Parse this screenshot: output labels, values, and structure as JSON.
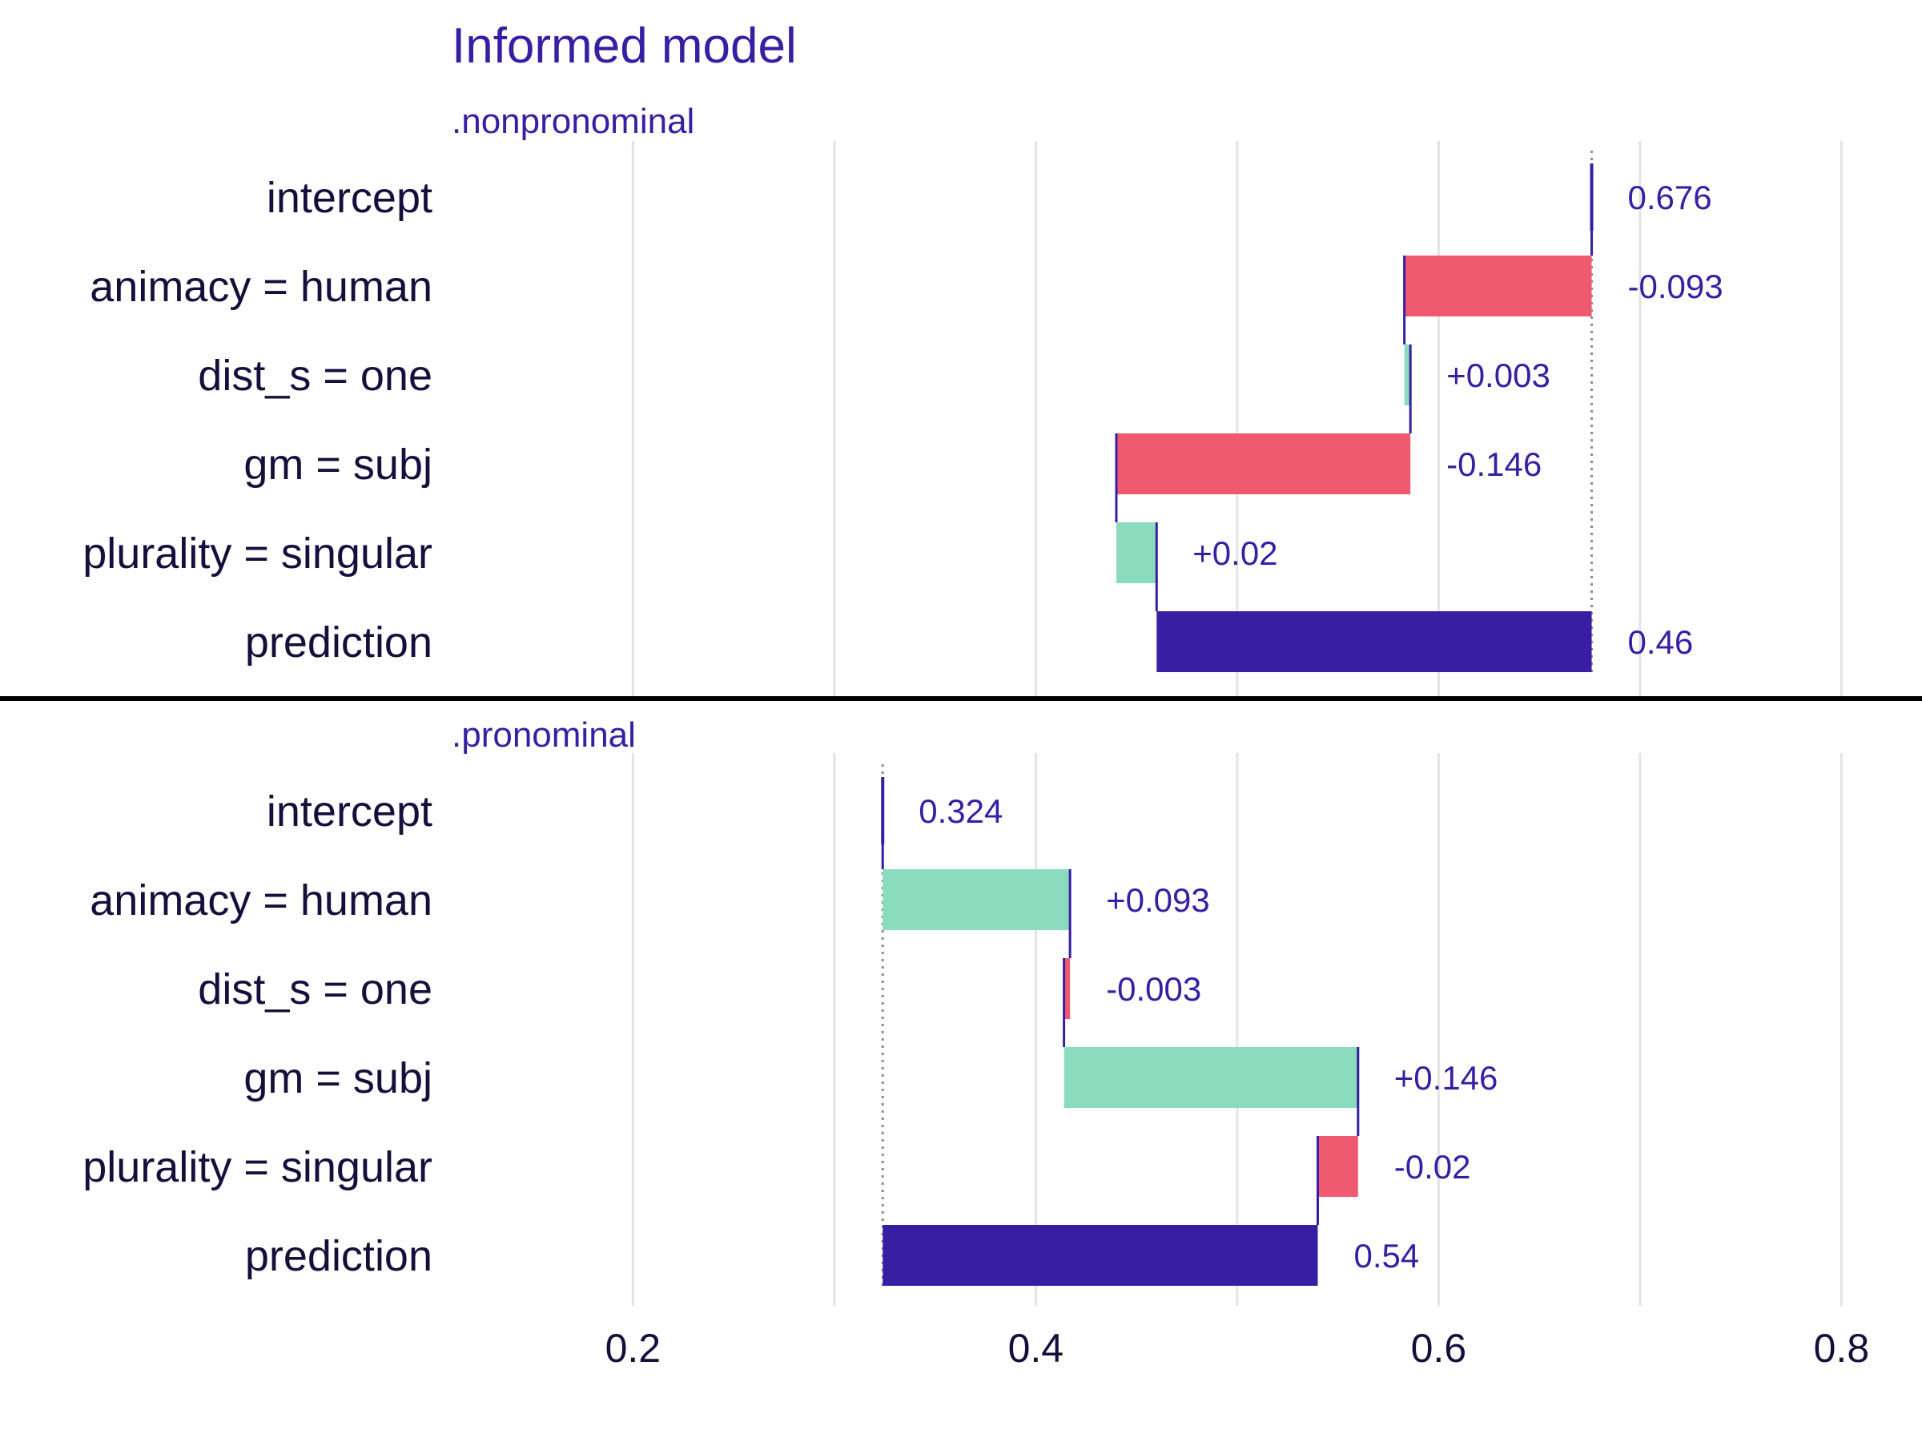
{
  "chart_data": {
    "type": "bar",
    "subtype": "waterfall (break down)",
    "title": "Informed model",
    "x_ticks": [
      0.2,
      0.4,
      0.6,
      0.8
    ],
    "x_tick_labels": [
      "0.2",
      "0.4",
      "0.6",
      "0.8"
    ],
    "xlim": [
      0.11,
      0.84
    ],
    "grid": "vertical",
    "colors": {
      "positive": "#8bdcbe",
      "negative": "#f05a71",
      "prediction": "#371ea3",
      "text": "#371ea3",
      "axis_text": "#160e3b"
    },
    "panels": [
      {
        "label": ".nonpronominal",
        "baseline": 0.676,
        "rows": [
          {
            "variable": "intercept",
            "start": 0.676,
            "end": 0.676,
            "label": "0.676",
            "kind": "intercept"
          },
          {
            "variable": "animacy = human",
            "start": 0.676,
            "end": 0.583,
            "label": "-0.093",
            "kind": "negative"
          },
          {
            "variable": "dist_s = one",
            "start": 0.583,
            "end": 0.586,
            "label": "+0.003",
            "kind": "positive"
          },
          {
            "variable": "gm = subj",
            "start": 0.586,
            "end": 0.44,
            "label": "-0.146",
            "kind": "negative"
          },
          {
            "variable": "plurality = singular",
            "start": 0.44,
            "end": 0.46,
            "label": "+0.02",
            "kind": "positive"
          },
          {
            "variable": "prediction",
            "start": 0.676,
            "end": 0.46,
            "label": "0.46",
            "kind": "prediction"
          }
        ]
      },
      {
        "label": ".pronominal",
        "baseline": 0.324,
        "rows": [
          {
            "variable": "intercept",
            "start": 0.324,
            "end": 0.324,
            "label": "0.324",
            "kind": "intercept"
          },
          {
            "variable": "animacy = human",
            "start": 0.324,
            "end": 0.417,
            "label": "+0.093",
            "kind": "positive"
          },
          {
            "variable": "dist_s = one",
            "start": 0.417,
            "end": 0.414,
            "label": "-0.003",
            "kind": "negative"
          },
          {
            "variable": "gm = subj",
            "start": 0.414,
            "end": 0.56,
            "label": "+0.146",
            "kind": "positive"
          },
          {
            "variable": "plurality = singular",
            "start": 0.56,
            "end": 0.54,
            "label": "-0.02",
            "kind": "negative"
          },
          {
            "variable": "prediction",
            "start": 0.324,
            "end": 0.54,
            "label": "0.54",
            "kind": "prediction"
          }
        ]
      }
    ]
  }
}
